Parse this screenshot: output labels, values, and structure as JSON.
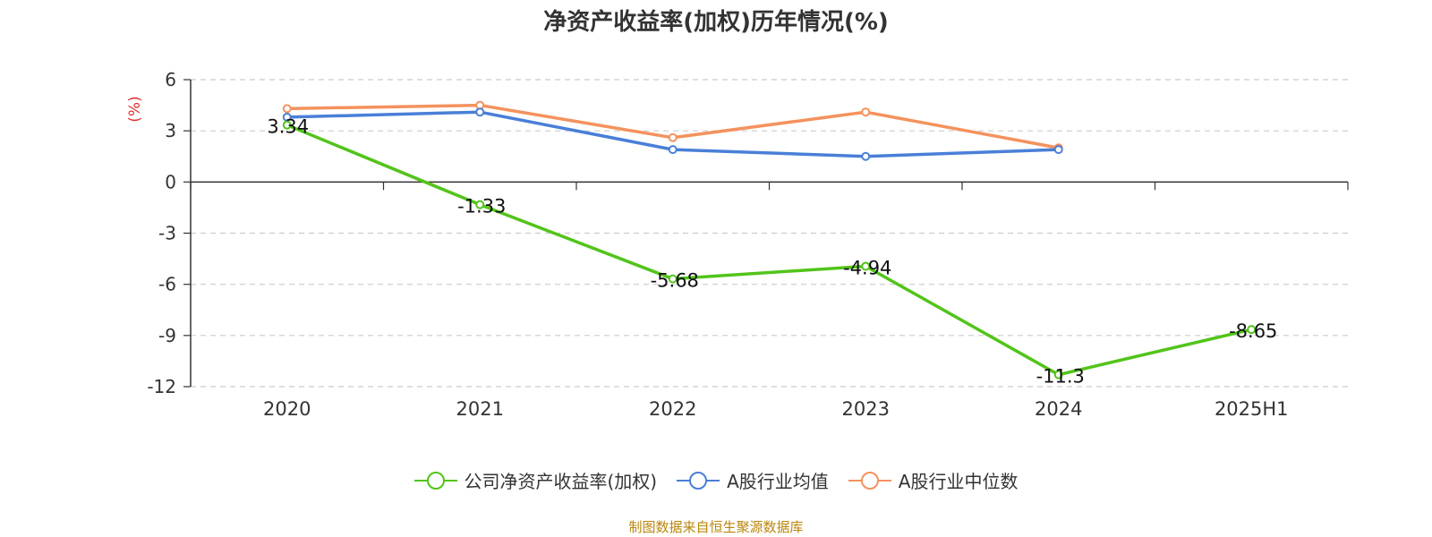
{
  "chart_data": {
    "type": "line",
    "title": "净资产收益率(加权)历年情况(%)",
    "ylabel": "(%)",
    "xlabel": "",
    "categories": [
      "2020",
      "2021",
      "2022",
      "2023",
      "2024",
      "2025H1"
    ],
    "ylim": [
      -12,
      6
    ],
    "yticks": [
      6,
      3,
      0,
      -3,
      -6,
      -9,
      -12
    ],
    "ytick_labels": [
      "6",
      "3",
      "0",
      "-3",
      "-6",
      "-9",
      "-12"
    ],
    "grid": true,
    "legend_position": "bottom",
    "series": [
      {
        "name": "公司净资产收益率(加权)",
        "color": "#52c41a",
        "values": [
          3.34,
          -1.33,
          -5.68,
          -4.94,
          -11.3,
          -8.65
        ],
        "data_labels": [
          "3.34",
          "-1.33",
          "-5.68",
          "-4.94",
          "-11.3",
          "-8.65"
        ]
      },
      {
        "name": "A股行业均值",
        "color": "#4a7fd8",
        "values": [
          3.8,
          4.1,
          1.9,
          1.5,
          1.9,
          null
        ]
      },
      {
        "name": "A股行业中位数",
        "color": "#f4925e",
        "values": [
          4.3,
          4.5,
          2.6,
          4.1,
          2.0,
          null
        ]
      }
    ]
  },
  "footer": {
    "source": "制图数据来自恒生聚源数据库"
  },
  "colors": {
    "ylabel": "#e03030",
    "source": "#b8860b",
    "grid": "#cccccc",
    "axis": "#333333"
  }
}
